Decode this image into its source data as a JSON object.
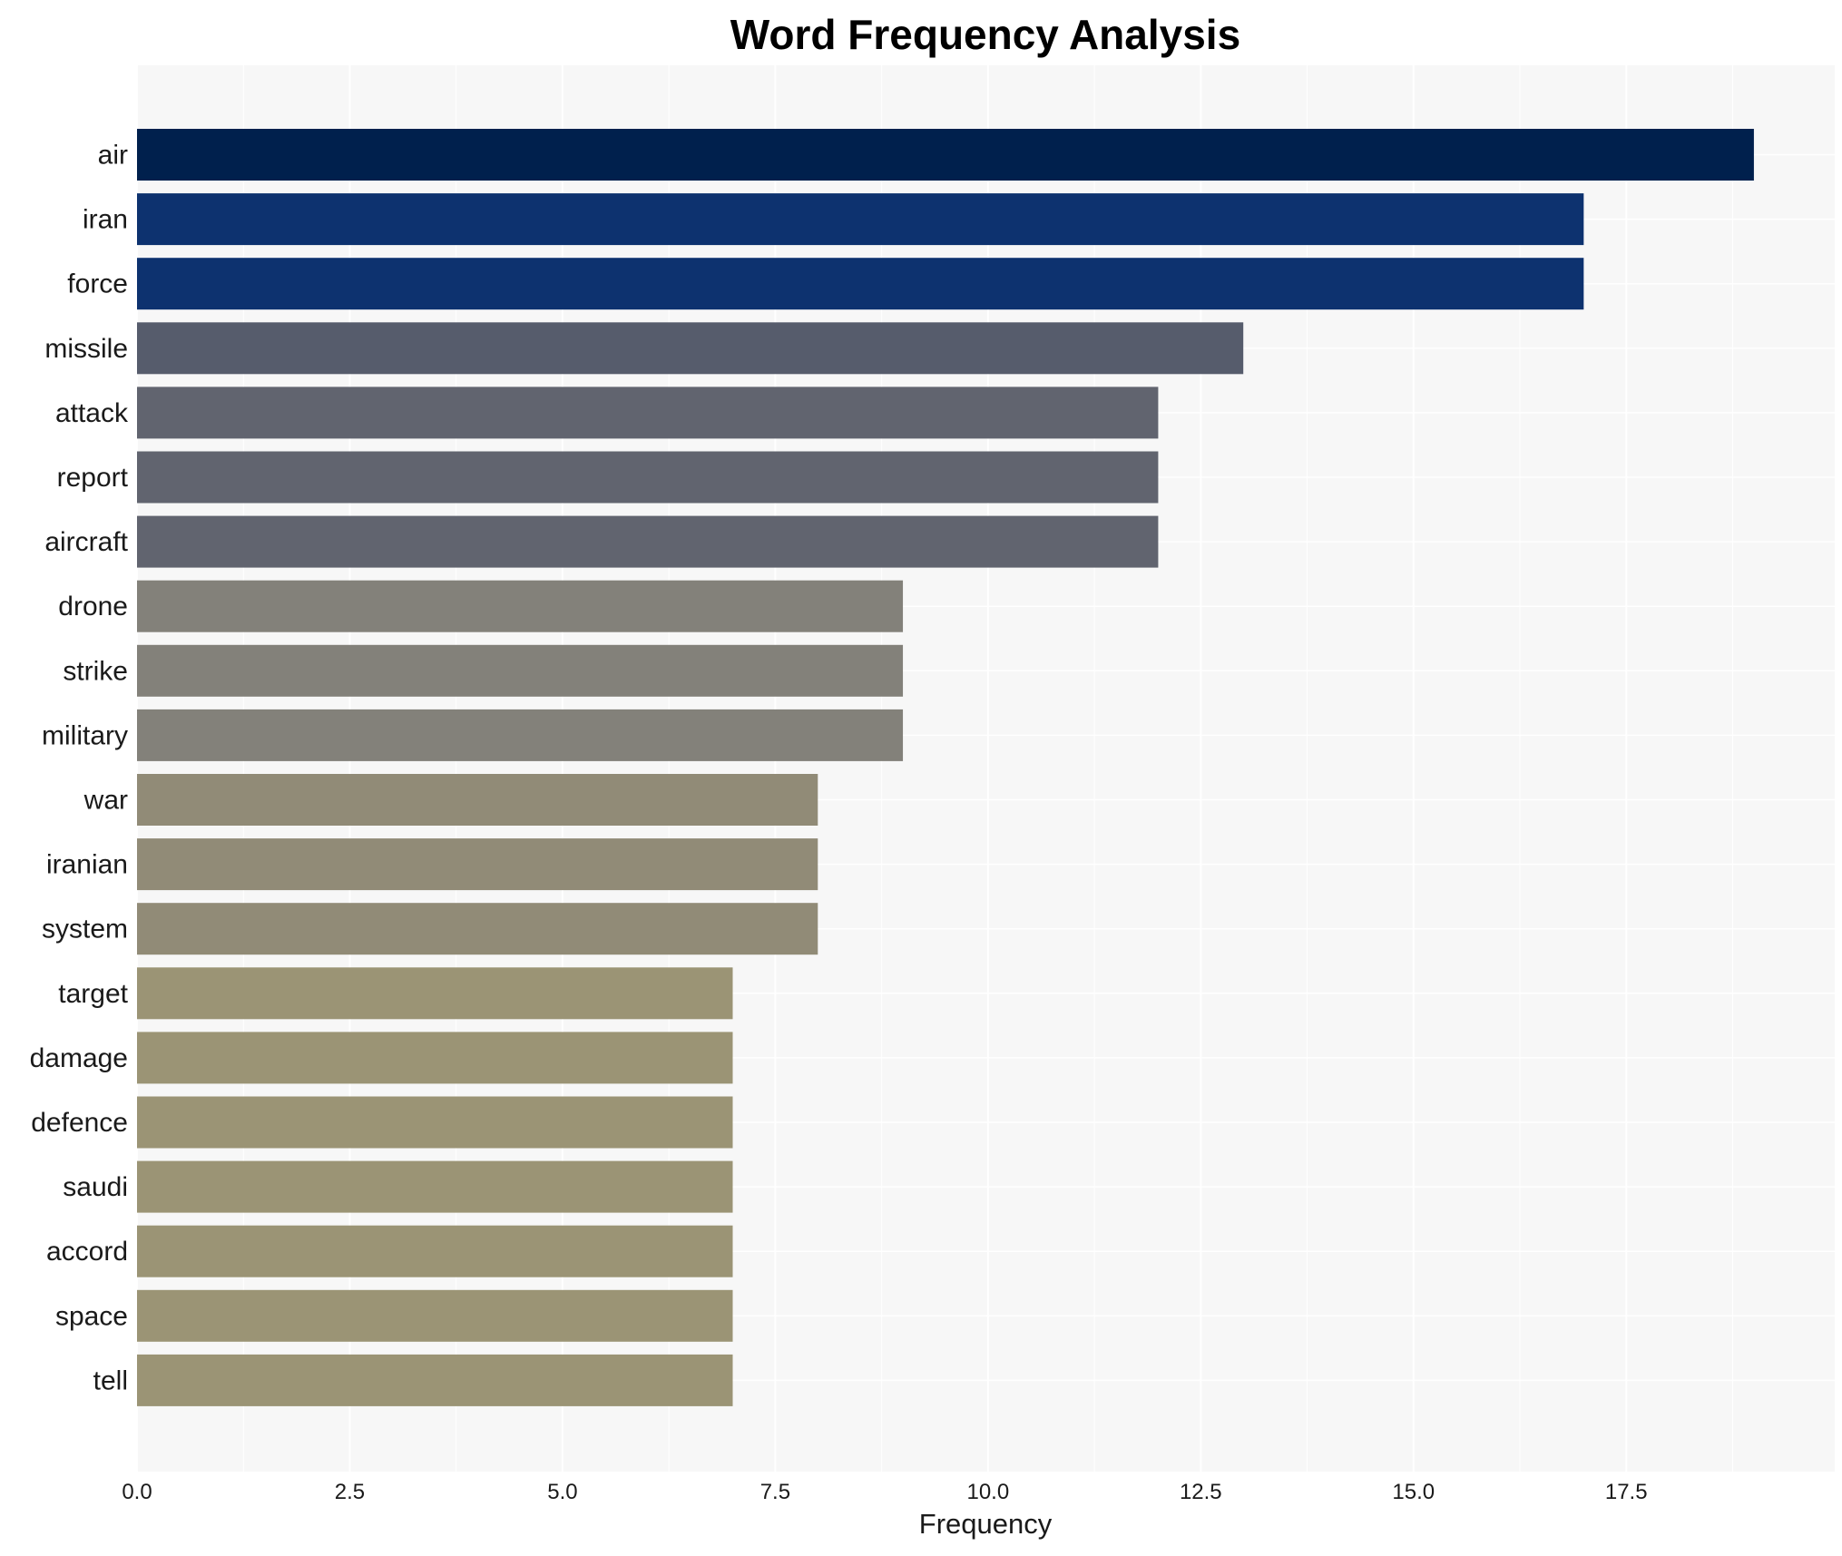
{
  "chart_data": {
    "type": "bar",
    "orientation": "horizontal",
    "title": "Word Frequency Analysis",
    "xlabel": "Frequency",
    "ylabel": "",
    "xlim": [
      0,
      19.95
    ],
    "xticks": [
      0.0,
      2.5,
      5.0,
      7.5,
      10.0,
      12.5,
      15.0,
      17.5
    ],
    "xtick_labels": [
      "0.0",
      "2.5",
      "5.0",
      "7.5",
      "10.0",
      "12.5",
      "15.0",
      "17.5"
    ],
    "grid": true,
    "categories": [
      "air",
      "iran",
      "force",
      "missile",
      "attack",
      "report",
      "aircraft",
      "drone",
      "strike",
      "military",
      "war",
      "iranian",
      "system",
      "target",
      "damage",
      "defence",
      "saudi",
      "accord",
      "space",
      "tell"
    ],
    "values": [
      19,
      17,
      17,
      13,
      12,
      12,
      12,
      9,
      9,
      9,
      8,
      8,
      8,
      7,
      7,
      7,
      7,
      7,
      7,
      7
    ],
    "colors": [
      "#00204d",
      "#0d326f",
      "#0d326f",
      "#565c6c",
      "#61646f",
      "#61646f",
      "#61646f",
      "#83817a",
      "#83817a",
      "#83817a",
      "#918b77",
      "#918b77",
      "#918b77",
      "#9b9475",
      "#9b9475",
      "#9b9475",
      "#9b9475",
      "#9b9475",
      "#9b9475",
      "#9b9475"
    ],
    "plot_background": "#f7f7f7",
    "grid_color": "#ffffff"
  }
}
